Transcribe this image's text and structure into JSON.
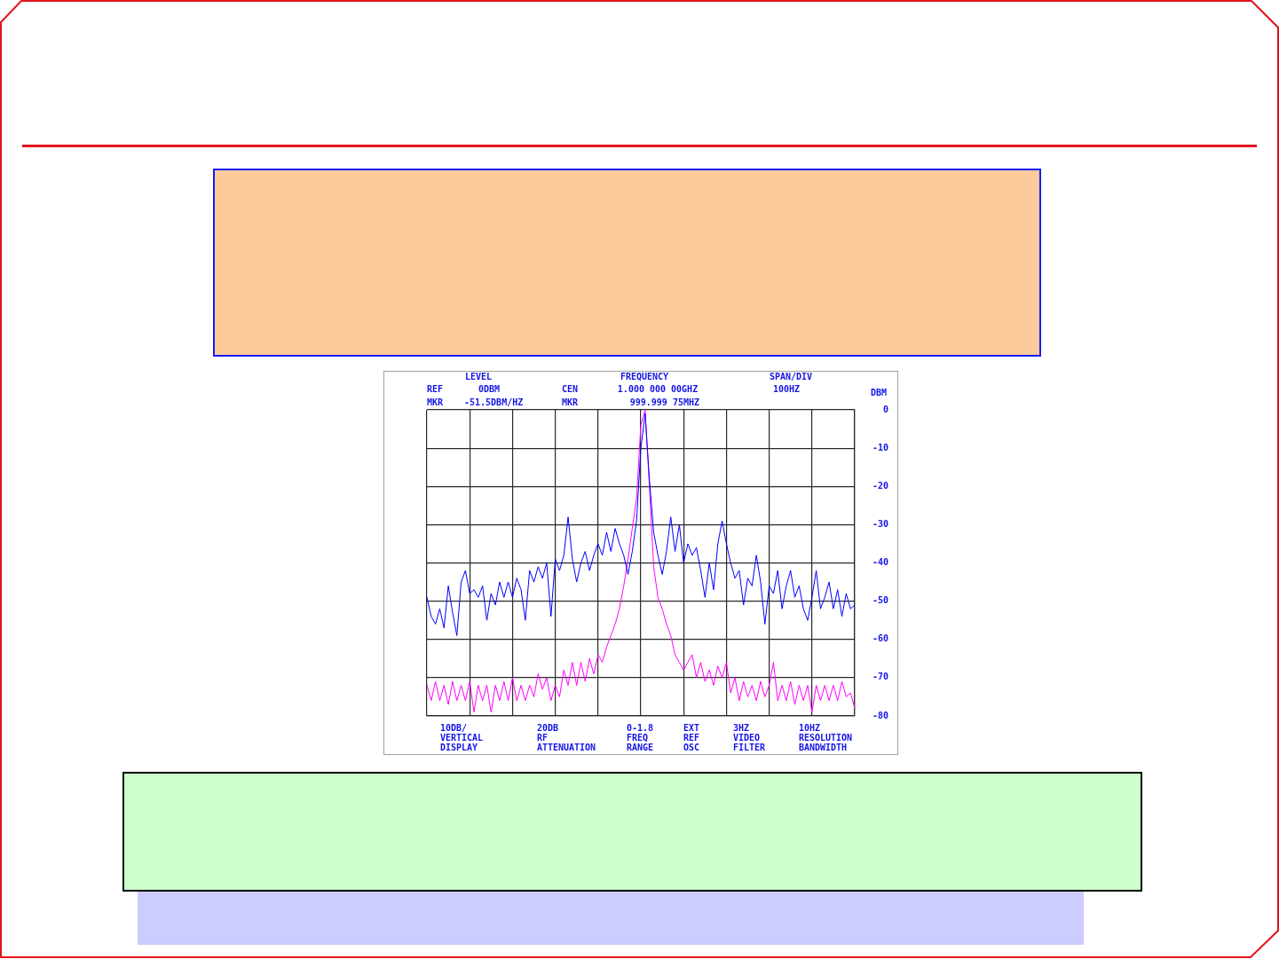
{
  "chart_data": {
    "type": "line",
    "ylabel": "DBM",
    "categories": [
      null,
      null,
      null,
      null,
      null,
      null,
      null,
      null,
      null,
      null,
      null,
      null,
      null,
      null,
      null,
      null,
      null,
      null,
      null,
      null,
      null,
      null,
      null,
      null,
      null,
      null,
      null,
      null,
      null,
      null,
      null,
      null,
      null,
      null,
      null,
      null,
      null,
      null,
      null,
      null,
      null,
      null,
      null,
      null,
      null,
      null,
      null,
      null,
      null,
      null,
      null,
      null,
      null,
      null,
      null,
      null,
      null,
      null,
      null,
      null,
      null,
      null,
      null,
      null,
      null,
      null,
      null,
      null,
      null,
      null,
      null,
      null,
      null,
      null,
      null,
      null,
      null,
      null,
      null,
      null,
      null,
      null,
      null,
      null,
      null,
      null,
      null,
      null,
      null,
      null,
      null,
      null,
      null,
      null,
      null,
      null,
      null,
      null,
      null,
      null,
      null
    ],
    "series": [
      {
        "color": "#0000ff",
        "values": [
          -49,
          -54,
          -56,
          -52,
          -57,
          -46,
          -53,
          -59,
          -45,
          -42,
          -48,
          -47,
          -49,
          -46,
          -55,
          -48,
          -51,
          -45,
          -49,
          -45,
          -49,
          -44,
          -47,
          -55,
          -42,
          -45,
          -41,
          -44,
          -40,
          -54,
          -39,
          -42,
          -38,
          -28,
          -39,
          -45,
          -40,
          -37,
          -42,
          -38,
          -35,
          -38,
          -32,
          -37,
          -31,
          -35,
          -38,
          -43,
          -37,
          -29,
          -10,
          -1,
          -18,
          -32,
          -38,
          -43,
          -37,
          -28,
          -37,
          -30,
          -40,
          -35,
          -38,
          -36,
          -42,
          -49,
          -40,
          -47,
          -35,
          -29,
          -35,
          -40,
          -44,
          -42,
          -51,
          -44,
          -46,
          -38,
          -45,
          -56,
          -46,
          -48,
          -42,
          -52,
          -46,
          -42,
          -49,
          -46,
          -52,
          -55,
          -49,
          -42,
          -52,
          -49,
          -45,
          -52,
          -47,
          -54,
          -48,
          -52,
          -51
        ]
      },
      {
        "color": "#ff00ff",
        "values": [
          -72,
          -76,
          -71,
          -76,
          -72,
          -77,
          -71,
          -76,
          -72,
          -76,
          -71,
          -79,
          -72,
          -76,
          -72,
          -79,
          -72,
          -76,
          -71,
          -76,
          -70,
          -76,
          -72,
          -76,
          -72,
          -75,
          -69,
          -73,
          -70,
          -76,
          -72,
          -75,
          -68,
          -72,
          -66,
          -72,
          -66,
          -71,
          -65,
          -69,
          -64,
          -66,
          -62,
          -59,
          -56,
          -52,
          -46,
          -39,
          -31,
          -23,
          -4,
          0,
          -20,
          -41,
          -49,
          -52,
          -56,
          -59,
          -64,
          -66,
          -68,
          -66,
          -64,
          -70,
          -66,
          -71,
          -68,
          -72,
          -67,
          -70,
          -66,
          -74,
          -70,
          -76,
          -71,
          -75,
          -72,
          -76,
          -71,
          -75,
          -72,
          -66,
          -76,
          -72,
          -76,
          -71,
          -77,
          -72,
          -76,
          -72,
          -79,
          -72,
          -76,
          -72,
          -76,
          -72,
          -76,
          -71,
          -75,
          -74,
          -78
        ]
      }
    ],
    "ylim": [
      -80,
      0
    ],
    "yticks": [
      -80,
      -70,
      -60,
      -50,
      -40,
      -30,
      -20,
      -10,
      0
    ],
    "grid": true,
    "tick_labels": "y",
    "annotations": [
      "LEVEL",
      "FREQUENCY",
      "SPAN/DIV",
      "REF",
      "0DBM",
      "CEN",
      "1.000 000 00GHZ",
      "100HZ",
      "MKR",
      "-51.5DBM/HZ",
      "MKR",
      "999.999 75MHZ",
      "10DB/\nVERTICAL\nDISPLAY",
      "20DB\nRF\nATTENUATION",
      "0-1.8\nFREQ\nRANGE",
      "EXT\nREF\nOSC",
      "3HZ\nVIDEO\nFILTER",
      "10HZ\nRESOLUTION\nBANDWIDTH"
    ]
  }
}
